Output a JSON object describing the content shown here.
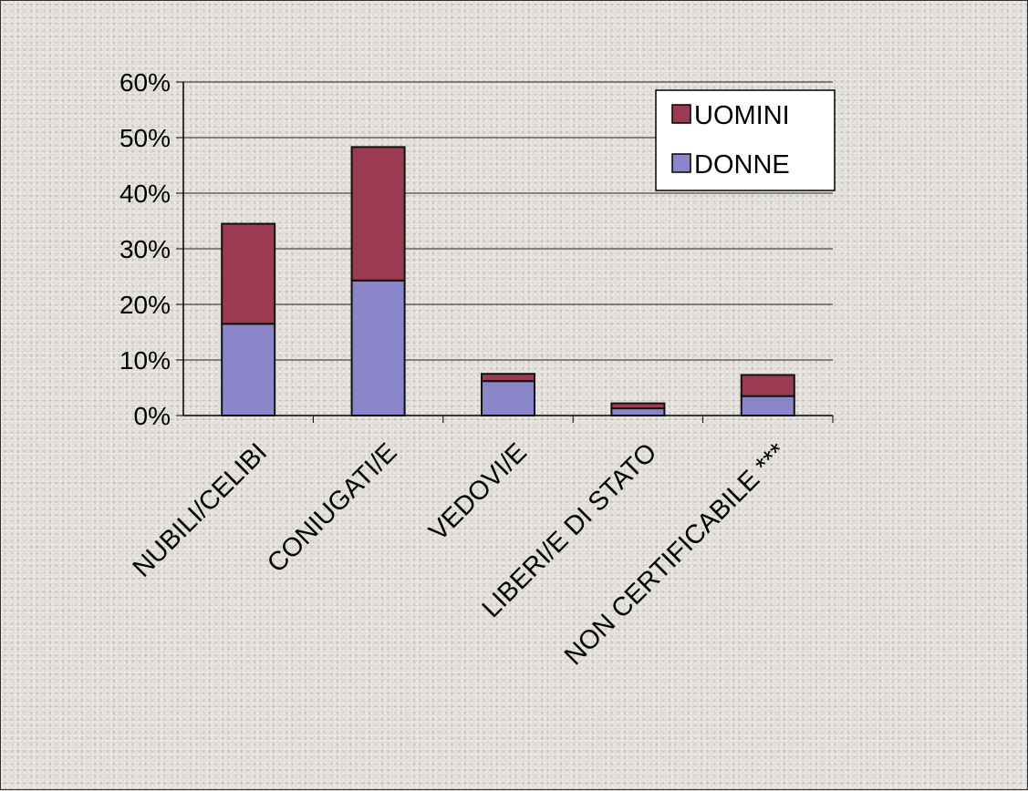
{
  "colors": {
    "donne": "#8b86c9",
    "uomini": "#9b3b52",
    "gridline": "#222222",
    "bar_outline": "#111111"
  },
  "chart_data": {
    "type": "bar",
    "stacked": true,
    "categories": [
      "NUBILI/CELIBI",
      "CONIUGATI/E",
      "VEDOVI/E",
      "LIBERI/E DI STATO",
      "NON CERTIFICABILE ***"
    ],
    "series": [
      {
        "name": "DONNE",
        "values": [
          16.5,
          24.3,
          6.2,
          1.3,
          3.5
        ],
        "color": "#8b86c9"
      },
      {
        "name": "UOMINI",
        "values": [
          18.0,
          24.0,
          1.3,
          0.9,
          3.8
        ],
        "color": "#9b3b52"
      }
    ],
    "ylim": [
      0,
      60
    ],
    "yticks": [
      "0%",
      "10%",
      "20%",
      "30%",
      "40%",
      "50%",
      "60%"
    ],
    "legend": {
      "position": "top-right",
      "order": [
        "UOMINI",
        "DONNE"
      ]
    },
    "grid": true,
    "title": "",
    "xlabel": "",
    "ylabel": ""
  }
}
